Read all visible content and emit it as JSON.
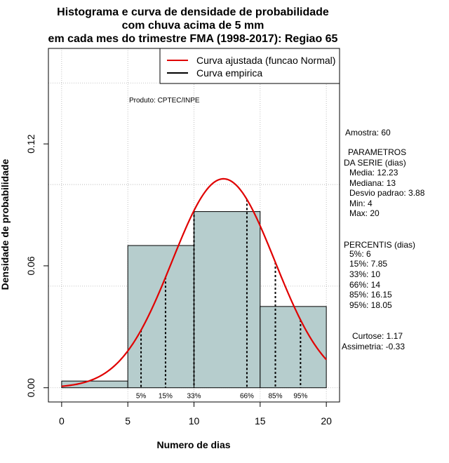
{
  "chart_data": {
    "type": "bar",
    "title_lines": [
      "Histograma e curva de densidade de probabilidade",
      "com chuva acima de 5 mm",
      "em cada mes do trimestre FMA (1998-2017): Regiao 65"
    ],
    "xlabel": "Numero de dias",
    "ylabel": "Densidade de probabilidade",
    "xlim": [
      -1,
      21
    ],
    "ylim": [
      -0.007,
      0.167
    ],
    "x_ticks": [
      "0",
      "5",
      "10",
      "15",
      "20"
    ],
    "x_tick_values": [
      0,
      5,
      10,
      15,
      20
    ],
    "y_ticks": [
      "0.00",
      "0.06",
      "0.12"
    ],
    "y_tick_values": [
      0.0,
      0.06,
      0.12
    ],
    "grid": true,
    "bins": [
      {
        "from": 0,
        "to": 5,
        "density": 0.0033
      },
      {
        "from": 5,
        "to": 10,
        "density": 0.07
      },
      {
        "from": 10,
        "to": 15,
        "density": 0.0867
      },
      {
        "from": 15,
        "to": 20,
        "density": 0.04
      }
    ],
    "bar_color": "#b6cdcd",
    "normal_curve": {
      "name": "Curva ajustada (funcao Normal)",
      "mean": 12.23,
      "sd": 3.88,
      "color": "#e00000"
    },
    "empirical_curve": {
      "name": "Curva empirica",
      "color": "#000000"
    },
    "percentiles": [
      {
        "label": "5%",
        "x": 6
      },
      {
        "label": "15%",
        "x": 7.85
      },
      {
        "label": "33%",
        "x": 10
      },
      {
        "label": "66%",
        "x": 14
      },
      {
        "label": "85%",
        "x": 16.15
      },
      {
        "label": "95%",
        "x": 18.05
      }
    ],
    "legend_position": "top-right",
    "annotation": "Produto: CPTEC/INPE"
  },
  "stats": {
    "amostra": "Amostra: 60",
    "parametros_title": "PARAMETROS",
    "parametros_sub": "DA SERIE (dias)",
    "media": "Media: 12.23",
    "mediana": "Mediana: 13",
    "desvio": "Desvio padrao: 3.88",
    "min": "Min: 4",
    "max": "Max: 20",
    "percentis_title": "PERCENTIS (dias)",
    "p5": "5%: 6",
    "p15": "15%: 7.85",
    "p33": "33%: 10",
    "p66": "66%: 14",
    "p85": "85%: 16.15",
    "p95": "95%: 18.05",
    "curtose": "Curtose: 1.17",
    "assimetria": "Assimetria: -0.33"
  }
}
